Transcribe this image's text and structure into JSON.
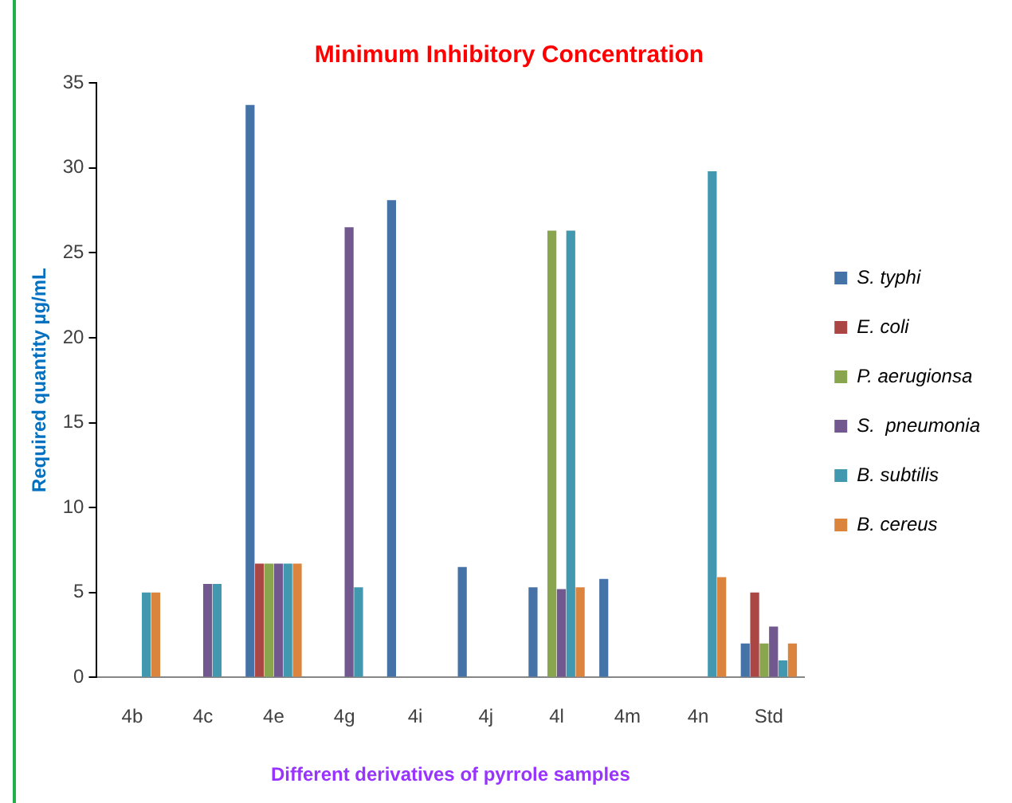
{
  "chart_data": {
    "type": "bar",
    "title": "Minimum Inhibitory Concentration",
    "xlabel": "Different derivatives of pyrrole samples",
    "ylabel": "Required quantity µg/mL",
    "categories": [
      "4b",
      "4c",
      "4e",
      "4g",
      "4i",
      "4j",
      "4l",
      "4m",
      "4n",
      "Std"
    ],
    "series": [
      {
        "name": "S. typhi",
        "color": "#4572a7",
        "values": [
          null,
          null,
          33.7,
          null,
          28.1,
          6.5,
          5.3,
          5.8,
          null,
          2
        ]
      },
      {
        "name": "E. coli",
        "color": "#aa4643",
        "values": [
          null,
          null,
          6.7,
          null,
          null,
          null,
          null,
          null,
          null,
          5
        ]
      },
      {
        "name": "P. aerugionsa",
        "color": "#89a54e",
        "values": [
          null,
          null,
          6.7,
          null,
          null,
          null,
          26.3,
          null,
          null,
          2
        ]
      },
      {
        "name": "S.  pneumonia",
        "color": "#71588f",
        "values": [
          null,
          5.5,
          6.7,
          26.5,
          null,
          null,
          5.2,
          null,
          null,
          3
        ]
      },
      {
        "name": "B. subtilis",
        "color": "#4198af",
        "values": [
          5,
          5.5,
          6.7,
          5.3,
          null,
          null,
          26.3,
          null,
          29.8,
          1
        ]
      },
      {
        "name": "B. cereus",
        "color": "#db843d",
        "values": [
          5,
          null,
          6.7,
          null,
          null,
          null,
          5.3,
          null,
          5.9,
          2
        ]
      }
    ],
    "ylim": [
      0,
      35
    ],
    "yticks": [
      0,
      5,
      10,
      15,
      20,
      25,
      30,
      35
    ],
    "grid": false,
    "legend": "right"
  }
}
